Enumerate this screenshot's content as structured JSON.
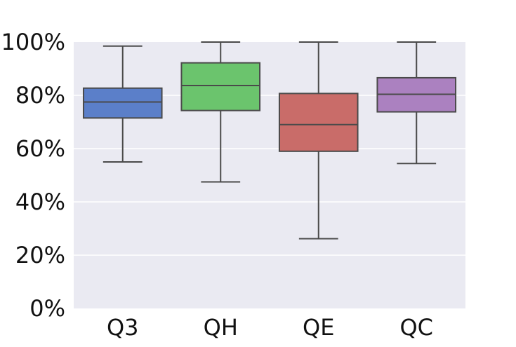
{
  "chart_data": {
    "type": "box",
    "title": "",
    "xlabel": "",
    "ylabel": "",
    "ylim": [
      0,
      100
    ],
    "yticks": [
      0,
      20,
      40,
      60,
      80,
      100
    ],
    "ytick_labels": [
      "0%",
      "20%",
      "40%",
      "60%",
      "80%",
      "100%"
    ],
    "grid": true,
    "categories": [
      "Q3",
      "QH",
      "QE",
      "QC"
    ],
    "boxes": [
      {
        "category": "Q3",
        "whisker_low": 55.0,
        "q1": 71.5,
        "median": 77.5,
        "q3": 82.7,
        "whisker_high": 98.5,
        "color": "#5b7fc9"
      },
      {
        "category": "QH",
        "whisker_low": 47.5,
        "q1": 74.3,
        "median": 83.7,
        "q3": 92.2,
        "whisker_high": 100.0,
        "color": "#6bc46d"
      },
      {
        "category": "QE",
        "whisker_low": 26.2,
        "q1": 59.0,
        "median": 69.0,
        "q3": 80.7,
        "whisker_high": 100.0,
        "color": "#c96c69"
      },
      {
        "category": "QC",
        "whisker_low": 54.4,
        "q1": 73.8,
        "median": 80.4,
        "q3": 86.6,
        "whisker_high": 100.0,
        "color": "#ab81c0"
      }
    ],
    "colors": {
      "plot_background": "#eaeaf2",
      "grid": "#ffffff",
      "box_edge": "#4a4a4a"
    }
  }
}
